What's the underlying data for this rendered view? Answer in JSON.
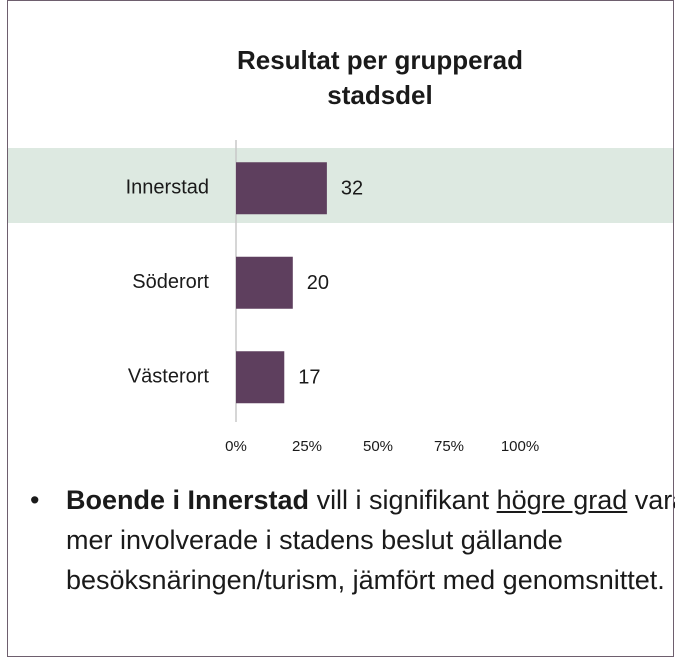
{
  "chart_data": {
    "type": "bar",
    "orientation": "horizontal",
    "title": [
      "Resultat per grupperad",
      "stadsdel"
    ],
    "categories": [
      "Innerstad",
      "Söderort",
      "Västerort"
    ],
    "values": [
      32,
      20,
      17
    ],
    "color": "#5e3f5e",
    "highlight_color": "#dde9e1",
    "highlight": "Innerstad",
    "xlim": [
      0,
      100
    ],
    "xticks": [
      {
        "value": 0,
        "label": "0%"
      },
      {
        "value": 25,
        "label": "25%"
      },
      {
        "value": 50,
        "label": "50%"
      },
      {
        "value": 75,
        "label": "75%"
      },
      {
        "value": 100,
        "label": "100%"
      }
    ],
    "grid": false
  },
  "note": {
    "bold": "Boende i Innerstad",
    "text1": "vill i signifikant",
    "underline": "högre grad",
    "text2": "vara mer involverade i stadens beslut gällande besöksnäringen/turism, jämfört med genomsnittet."
  }
}
